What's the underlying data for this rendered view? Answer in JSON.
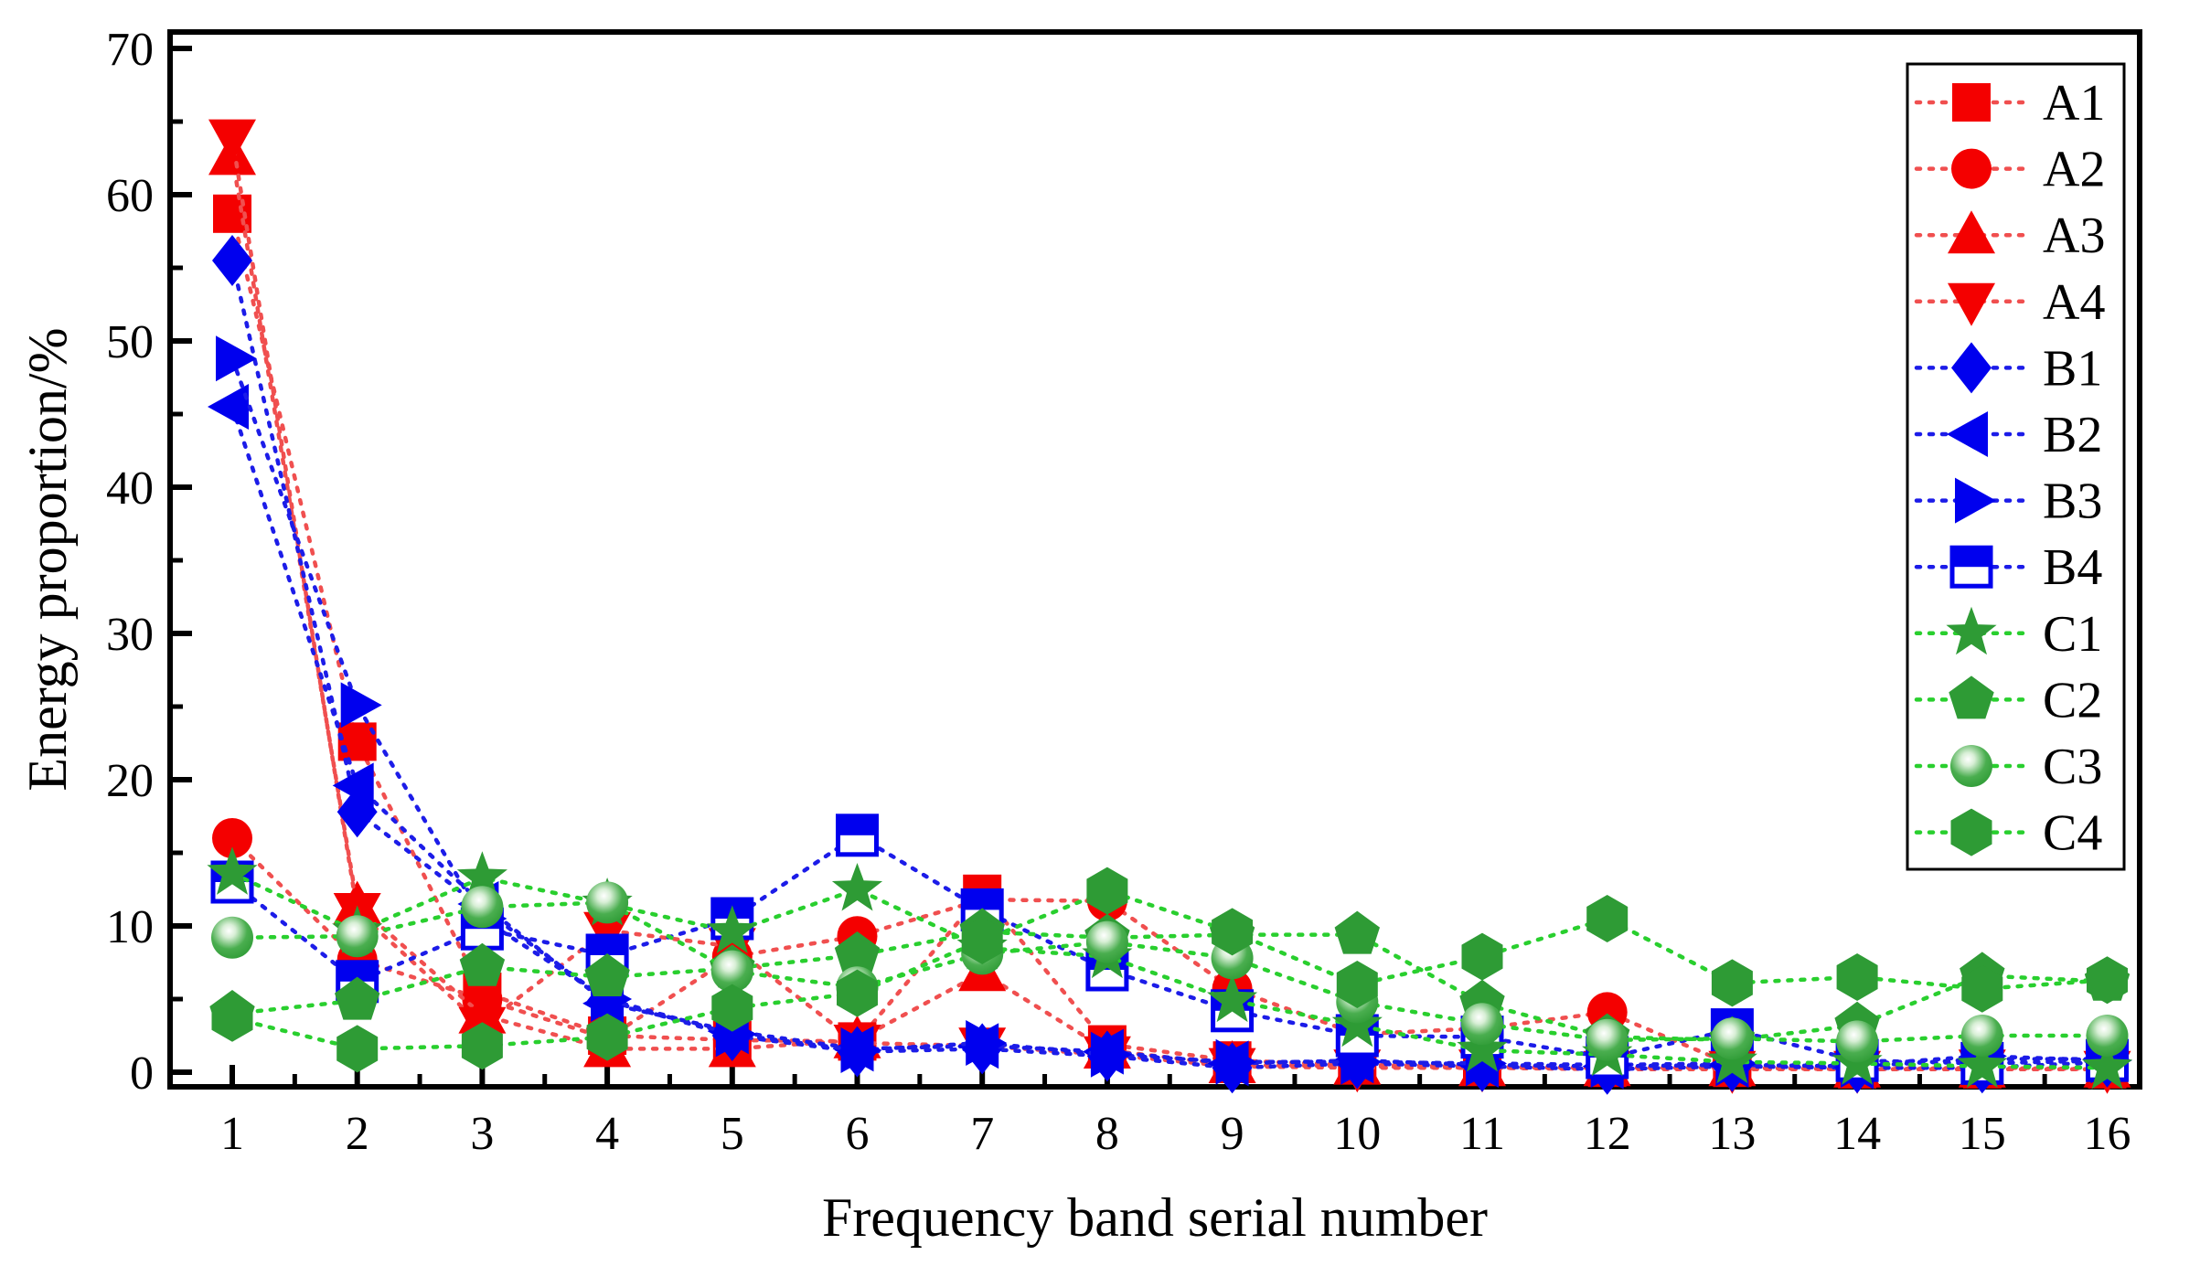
{
  "chart_data": {
    "type": "line",
    "title": "",
    "xlabel": "Frequency band serial number",
    "ylabel": "Energy proportion/%",
    "x": [
      1,
      2,
      3,
      4,
      5,
      6,
      7,
      8,
      9,
      10,
      11,
      12,
      13,
      14,
      15,
      16
    ],
    "xtick_labels": [
      "1",
      "2",
      "3",
      "4",
      "5",
      "6",
      "7",
      "8",
      "9",
      "10",
      "11",
      "12",
      "13",
      "14",
      "15",
      "16"
    ],
    "ylim": [
      0,
      70
    ],
    "yticks": [
      0,
      10,
      20,
      30,
      40,
      50,
      60,
      70
    ],
    "yminor": [
      5,
      15,
      25,
      35,
      45,
      55,
      65
    ],
    "grid": "off",
    "line_style": "dotted",
    "legend_position": "upper-right",
    "colors": {
      "red_marker": "#f40000",
      "red_line": "#f04f4f",
      "blue_marker": "#0000ee",
      "blue_line": "#1c1ce8",
      "green_marker": "#2e9b35",
      "green_line": "#29cf2e",
      "axis": "#000000"
    },
    "series": [
      {
        "name": "A1",
        "family": "red",
        "marker": "square",
        "values": [
          58.7,
          22.6,
          5.5,
          2.5,
          2.2,
          2.1,
          12.2,
          1.9,
          0.8,
          0.5,
          0.4,
          0.3,
          0.3,
          0.2,
          0.2,
          0.2
        ]
      },
      {
        "name": "A2",
        "family": "red",
        "marker": "circle",
        "values": [
          16.0,
          7.7,
          5.0,
          2.3,
          7.9,
          9.3,
          11.8,
          11.7,
          5.7,
          2.6,
          3.0,
          4.1,
          0.5,
          0.4,
          0.3,
          0.3
        ]
      },
      {
        "name": "A3",
        "family": "red",
        "marker": "triangle-up",
        "values": [
          62.6,
          11.4,
          3.9,
          1.6,
          1.6,
          2.2,
          6.8,
          1.5,
          0.5,
          0.4,
          0.3,
          0.3,
          0.3,
          0.2,
          0.2,
          0.2
        ]
      },
      {
        "name": "A4",
        "family": "red",
        "marker": "triangle-down",
        "values": [
          63.9,
          11.0,
          3.2,
          9.7,
          8.6,
          2.0,
          1.8,
          1.2,
          0.4,
          0.3,
          0.3,
          0.2,
          0.2,
          0.2,
          0.3,
          0.2
        ]
      },
      {
        "name": "B1",
        "family": "blue",
        "marker": "diamond",
        "values": [
          55.5,
          17.8,
          11.2,
          4.9,
          2.5,
          1.4,
          1.6,
          1.1,
          0.3,
          0.6,
          0.4,
          0.2,
          0.4,
          0.3,
          0.3,
          0.7
        ]
      },
      {
        "name": "B2",
        "family": "blue",
        "marker": "triangle-left",
        "values": [
          45.5,
          19.6,
          11.5,
          4.7,
          2.8,
          1.6,
          1.8,
          1.4,
          0.6,
          0.8,
          0.5,
          0.4,
          0.5,
          0.4,
          0.9,
          0.9
        ]
      },
      {
        "name": "B3",
        "family": "blue",
        "marker": "triangle-right",
        "values": [
          48.8,
          25.1,
          10.5,
          5.0,
          2.6,
          1.5,
          2.0,
          1.2,
          0.7,
          0.7,
          0.6,
          0.5,
          0.6,
          0.5,
          1.1,
          0.8
        ]
      },
      {
        "name": "B4",
        "family": "blue",
        "marker": "square-half",
        "values": [
          13.0,
          6.2,
          9.8,
          8.0,
          10.5,
          16.2,
          11.1,
          7.0,
          4.2,
          2.5,
          2.4,
          1.0,
          2.9,
          0.8,
          0.6,
          0.8
        ]
      },
      {
        "name": "C1",
        "family": "green",
        "marker": "star",
        "values": [
          13.6,
          9.6,
          13.3,
          11.5,
          9.6,
          12.5,
          8.5,
          7.9,
          4.9,
          3.2,
          1.5,
          1.2,
          0.7,
          0.6,
          0.4,
          0.3
        ]
      },
      {
        "name": "C2",
        "family": "green",
        "marker": "pentagon",
        "values": [
          4.0,
          4.9,
          7.2,
          6.5,
          7.1,
          8.0,
          9.6,
          9.2,
          9.4,
          9.4,
          4.7,
          2.4,
          2.2,
          3.2,
          6.6,
          6.2
        ]
      },
      {
        "name": "C3",
        "family": "green",
        "marker": "sphere",
        "values": [
          9.2,
          9.3,
          11.3,
          11.6,
          6.9,
          5.8,
          8.1,
          8.9,
          7.8,
          4.8,
          3.3,
          2.2,
          2.3,
          2.1,
          2.5,
          2.5
        ]
      },
      {
        "name": "C4",
        "family": "green",
        "marker": "hexagon",
        "values": [
          3.7,
          1.6,
          1.8,
          2.4,
          4.4,
          5.4,
          9.0,
          12.4,
          9.6,
          6.0,
          7.9,
          10.5,
          6.1,
          6.5,
          5.7,
          6.3
        ]
      }
    ]
  }
}
